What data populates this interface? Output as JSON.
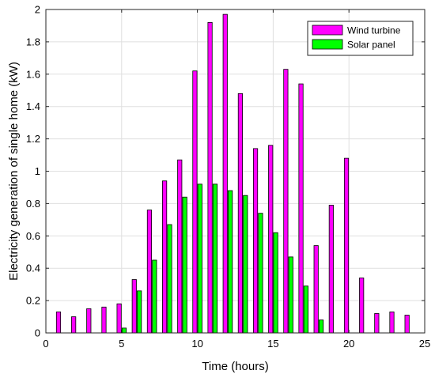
{
  "chart_data": {
    "type": "bar",
    "xlabel": "Time (hours)",
    "ylabel": "Electricity generation of single home (kW)",
    "xlim": [
      0,
      25
    ],
    "ylim": [
      0,
      2
    ],
    "xticks": [
      0,
      5,
      10,
      15,
      20,
      25
    ],
    "yticks": [
      0,
      0.2,
      0.4,
      0.6,
      0.8,
      1,
      1.2,
      1.4,
      1.6,
      1.8,
      2
    ],
    "grid": true,
    "legend_position": "top-right",
    "x": [
      1,
      2,
      3,
      4,
      5,
      6,
      7,
      8,
      9,
      10,
      11,
      12,
      13,
      14,
      15,
      16,
      17,
      18,
      19,
      20,
      21,
      22,
      23,
      24
    ],
    "series": [
      {
        "name": "Wind turbine",
        "color": "#ff00ff",
        "values": [
          0.13,
          0.1,
          0.15,
          0.16,
          0.18,
          0.33,
          0.76,
          0.94,
          1.07,
          1.62,
          1.92,
          1.97,
          1.48,
          1.14,
          1.16,
          1.63,
          1.54,
          0.54,
          0.79,
          1.08,
          0.34,
          0.12,
          0.13,
          0.11
        ]
      },
      {
        "name": "Solar panel",
        "color": "#00ff00",
        "values": [
          0,
          0,
          0,
          0,
          0.03,
          0.26,
          0.45,
          0.67,
          0.84,
          0.92,
          0.92,
          0.88,
          0.85,
          0.74,
          0.62,
          0.47,
          0.29,
          0.08,
          0,
          0,
          0,
          0,
          0,
          0
        ]
      }
    ]
  }
}
